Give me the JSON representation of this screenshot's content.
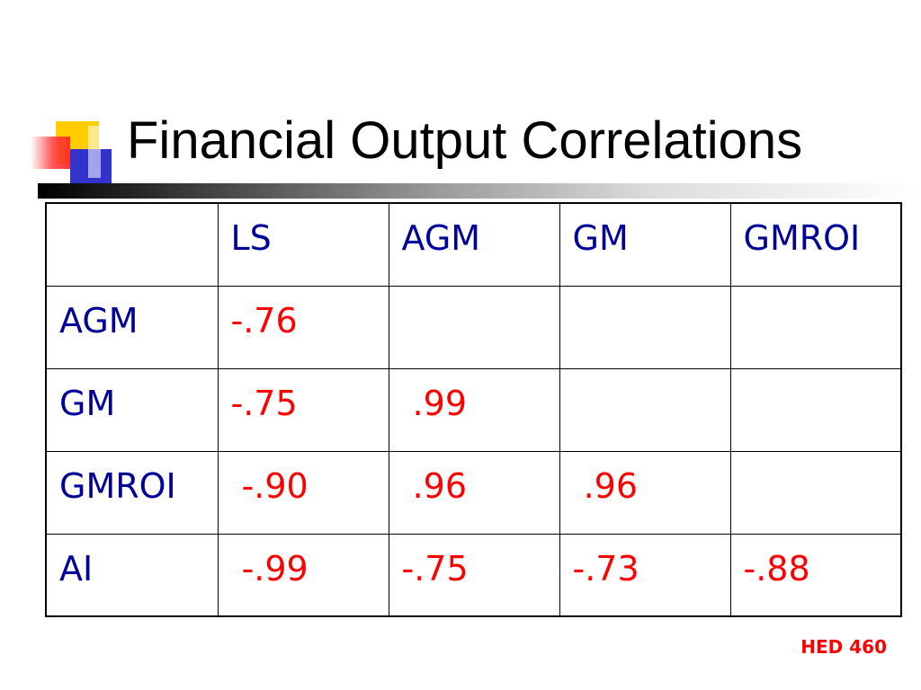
{
  "title": "Financial Output Correlations",
  "table": {
    "columns": [
      "",
      "LS",
      "AGM",
      "GM",
      "GMROI"
    ],
    "rows": [
      {
        "label": "AGM",
        "values": [
          "-.76",
          "",
          "",
          ""
        ]
      },
      {
        "label": "GM",
        "values": [
          "-.75",
          " .99",
          "",
          ""
        ]
      },
      {
        "label": "GMROI",
        "values": [
          " -.90",
          " .96",
          " .96",
          ""
        ]
      },
      {
        "label": "AI",
        "values": [
          " -.99",
          "-.75",
          "-.73",
          "-.88"
        ]
      }
    ]
  },
  "footer": "HED 460",
  "colors": {
    "header_text": "#000099",
    "value_text": "#ff0000",
    "footer_text": "#ff0000",
    "title_text": "#000000",
    "accent_yellow": "#ffcc00",
    "accent_blue": "#3333cc",
    "accent_red": "#ff2222"
  }
}
